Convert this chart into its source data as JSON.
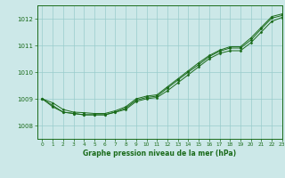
{
  "title": "Graphe pression niveau de la mer (hPa)",
  "background_color": "#cce8e8",
  "plot_bg_color": "#cce8e8",
  "grid_color": "#99cccc",
  "line_color": "#1a6b1a",
  "xlim": [
    -0.5,
    23
  ],
  "ylim": [
    1007.5,
    1012.5
  ],
  "yticks": [
    1008,
    1009,
    1010,
    1011,
    1012
  ],
  "xticks": [
    0,
    1,
    2,
    3,
    4,
    5,
    6,
    7,
    8,
    9,
    10,
    11,
    12,
    13,
    14,
    15,
    16,
    17,
    18,
    19,
    20,
    21,
    22,
    23
  ],
  "series1": [
    1009.0,
    1008.7,
    1008.5,
    1008.45,
    1008.4,
    1008.4,
    1008.4,
    1008.5,
    1008.6,
    1008.9,
    1009.0,
    1009.05,
    1009.3,
    1009.6,
    1009.9,
    1010.2,
    1010.5,
    1010.7,
    1010.8,
    1010.8,
    1011.1,
    1011.5,
    1011.9,
    1012.05
  ],
  "series2": [
    1009.0,
    1008.75,
    1008.5,
    1008.45,
    1008.4,
    1008.4,
    1008.4,
    1008.5,
    1008.65,
    1008.95,
    1009.05,
    1009.1,
    1009.4,
    1009.7,
    1010.0,
    1010.28,
    1010.58,
    1010.78,
    1010.9,
    1010.9,
    1011.2,
    1011.62,
    1012.02,
    1012.12
  ],
  "series3": [
    1009.0,
    1008.85,
    1008.6,
    1008.5,
    1008.48,
    1008.45,
    1008.45,
    1008.55,
    1008.7,
    1009.0,
    1009.1,
    1009.15,
    1009.45,
    1009.75,
    1010.05,
    1010.35,
    1010.62,
    1010.82,
    1010.95,
    1010.95,
    1011.28,
    1011.68,
    1012.08,
    1012.18
  ]
}
